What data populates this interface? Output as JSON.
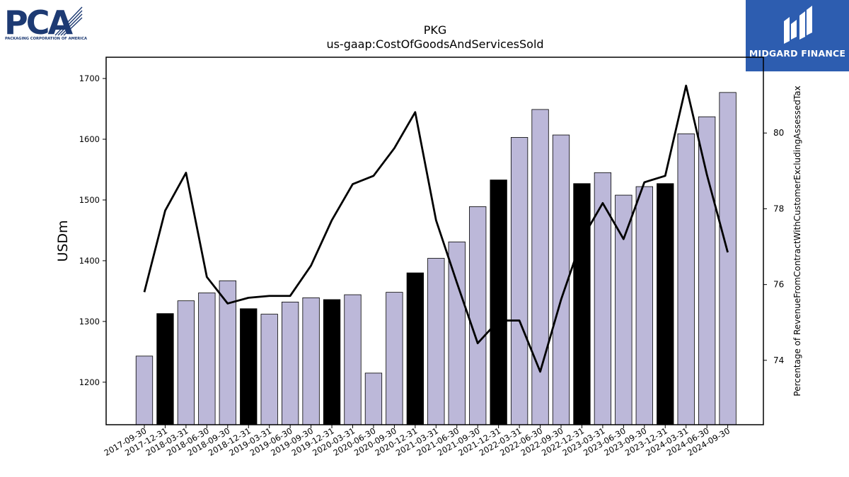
{
  "logos": {
    "left": {
      "mark": "PCA",
      "tagline": "PACKAGING CORPORATION OF AMERICA",
      "color": "#1d3a73"
    },
    "right": {
      "name": "MIDGARD FINANCE",
      "background": "#2d5db0"
    }
  },
  "chart_data": {
    "type": "bar",
    "title": "PKG",
    "subtitle": "us-gaap:CostOfGoodsAndServicesSold",
    "ylabel": "USDm",
    "y2label": "Percentage of RevenueFromContractWithCustomerExcludingAssessedTax",
    "ylim": [
      1130,
      1735
    ],
    "y2lim": [
      72.3,
      82.0
    ],
    "yticks": [
      1200,
      1300,
      1400,
      1500,
      1600,
      1700
    ],
    "y2ticks": [
      74,
      76,
      78,
      80
    ],
    "grid": false,
    "colors": {
      "bar_default": "#bcb8d9",
      "bar_highlight": "#000000",
      "line": "#000000"
    },
    "categories": [
      "2017-09-30",
      "2017-12-31",
      "2018-03-31",
      "2018-06-30",
      "2018-09-30",
      "2018-12-31",
      "2019-03-31",
      "2019-06-30",
      "2019-09-30",
      "2019-12-31",
      "2020-03-31",
      "2020-06-30",
      "2020-09-30",
      "2020-12-31",
      "2021-03-31",
      "2021-06-30",
      "2021-09-30",
      "2021-12-31",
      "2022-03-31",
      "2022-06-30",
      "2022-09-30",
      "2022-12-31",
      "2023-03-31",
      "2023-06-30",
      "2023-09-30",
      "2023-12-31",
      "2024-03-31",
      "2024-06-30",
      "2024-09-30"
    ],
    "series": [
      {
        "kind": "bar",
        "axis": "left",
        "values": [
          1243,
          1313,
          1334,
          1347,
          1367,
          1321,
          1312,
          1332,
          1339,
          1336,
          1344,
          1215,
          1348,
          1380,
          1404,
          1431,
          1489,
          1533,
          1603,
          1649,
          1607,
          1527,
          1545,
          1508,
          1522,
          1527,
          1609,
          1637,
          1677
        ],
        "highlight": [
          false,
          true,
          false,
          false,
          false,
          true,
          false,
          false,
          false,
          true,
          false,
          false,
          false,
          true,
          false,
          false,
          false,
          true,
          false,
          false,
          false,
          true,
          false,
          false,
          false,
          true,
          false,
          false,
          false
        ]
      },
      {
        "kind": "line",
        "axis": "right",
        "values": [
          75.8,
          77.95,
          78.95,
          76.2,
          75.5,
          75.65,
          75.7,
          75.7,
          76.5,
          77.7,
          78.65,
          78.87,
          79.6,
          80.55,
          77.7,
          76.05,
          74.45,
          75.05,
          75.05,
          73.7,
          75.6,
          77.2,
          78.15,
          77.2,
          78.7,
          78.87,
          81.25,
          78.9,
          76.85
        ]
      }
    ]
  }
}
